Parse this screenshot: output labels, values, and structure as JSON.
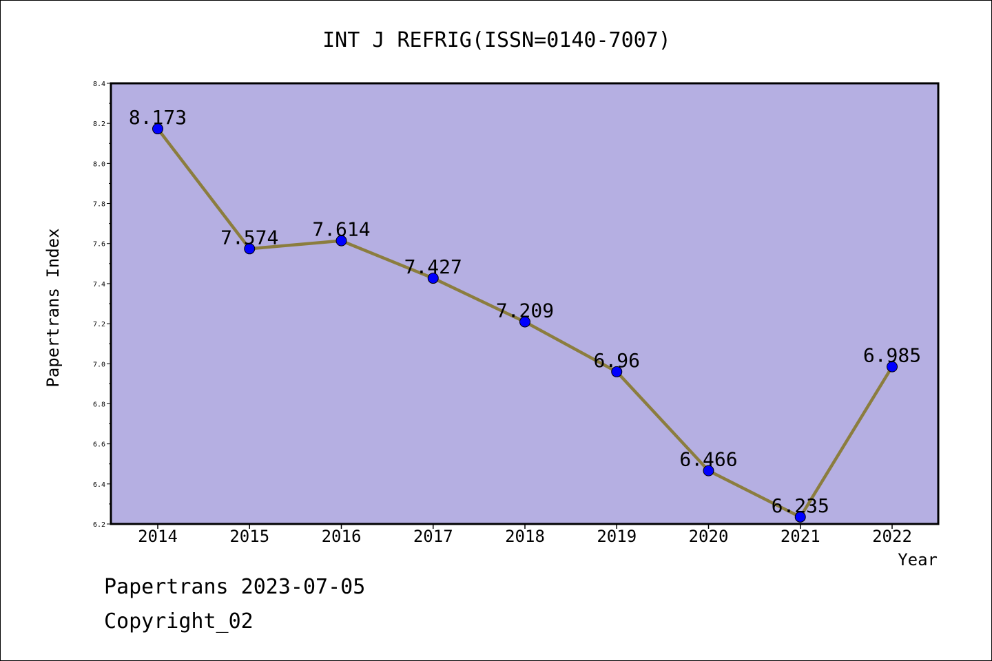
{
  "footer": {
    "line1": "Papertrans 2023-07-05",
    "line2": "Copyright_02"
  },
  "chart_data": {
    "type": "line",
    "title": "INT J REFRIG(ISSN=0140-7007)",
    "xlabel": "Year",
    "ylabel": "Papertrans Index",
    "categories": [
      "2014",
      "2015",
      "2016",
      "2017",
      "2018",
      "2019",
      "2020",
      "2021",
      "2022"
    ],
    "values": [
      8.173,
      7.574,
      7.614,
      7.427,
      7.209,
      6.96,
      6.466,
      6.235,
      6.985
    ],
    "data_labels": [
      "8.173",
      "7.574",
      "7.614",
      "7.427",
      "7.209",
      "6.96",
      "6.466",
      "6.235",
      "6.985"
    ],
    "ylim": [
      6.2,
      8.4
    ],
    "yticks": [
      "6.2",
      "6.4",
      "6.6",
      "6.8",
      "7.0",
      "7.2",
      "7.4",
      "7.6",
      "7.8",
      "8.0",
      "8.2",
      "8.4"
    ],
    "grid": false,
    "legend": "none",
    "colors": {
      "plot_background": "#b5afe2",
      "line": "#8b7d3e",
      "marker": "#0000ff"
    }
  }
}
